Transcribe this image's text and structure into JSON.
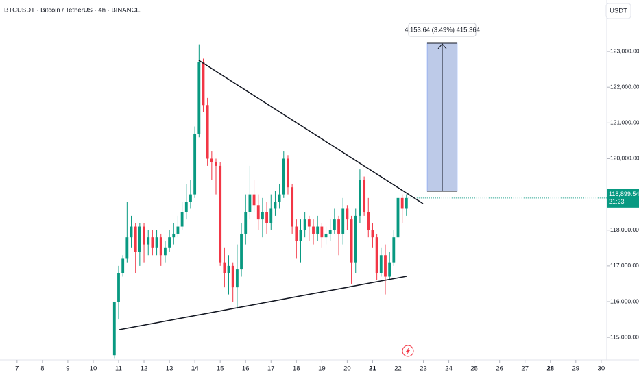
{
  "header": {
    "symbol": "BTCUSDT · Bitcoin / TetherUS · 4h · BINANCE",
    "currency_button": "USDT"
  },
  "chart_data": {
    "type": "candlestick",
    "up_color": "#089981",
    "down_color": "#f23645",
    "xlim": [
      6.33,
      30.22
    ],
    "ylim": [
      114370,
      124440
    ],
    "xticks": [
      7,
      8,
      9,
      10,
      11,
      12,
      13,
      14,
      15,
      16,
      17,
      18,
      19,
      20,
      21,
      22,
      23,
      24,
      25,
      26,
      27,
      28,
      29,
      30
    ],
    "bold_xticks": [
      14,
      21,
      28
    ],
    "yticks": [
      {
        "value": 115000,
        "label": "115,000.00"
      },
      {
        "value": 116000,
        "label": "116,000.00"
      },
      {
        "value": 117000,
        "label": "117,000.00"
      },
      {
        "value": 118000,
        "label": "118,000.00"
      },
      {
        "value": 119000,
        "label": "119,000.00"
      },
      {
        "value": 120000,
        "label": "120,000.00"
      },
      {
        "value": 121000,
        "label": "121,000.00"
      },
      {
        "value": 122000,
        "label": "122,000.00"
      },
      {
        "value": 123000,
        "label": "123,000.00"
      }
    ],
    "last_price": {
      "value": 118899.54,
      "label": "118,899.54"
    },
    "countdown": "21:23",
    "measure_label": "4,153.64 (3.49%) 415,364",
    "x": [
      10.833,
      11.0,
      11.167,
      11.333,
      11.5,
      11.667,
      11.833,
      12.0,
      12.167,
      12.333,
      12.5,
      12.667,
      12.833,
      13.0,
      13.167,
      13.333,
      13.5,
      13.667,
      13.833,
      14.0,
      14.167,
      14.333,
      14.5,
      14.667,
      14.833,
      15.0,
      15.167,
      15.333,
      15.5,
      15.667,
      15.833,
      16.0,
      16.167,
      16.333,
      16.5,
      16.667,
      16.833,
      17.0,
      17.167,
      17.333,
      17.5,
      17.667,
      17.833,
      18.0,
      18.167,
      18.333,
      18.5,
      18.667,
      18.833,
      19.0,
      19.167,
      19.333,
      19.5,
      19.667,
      19.833,
      20.0,
      20.167,
      20.333,
      20.5,
      20.667,
      20.833,
      21.0,
      21.167,
      21.333,
      21.5,
      21.667,
      21.833,
      22.0,
      22.167,
      22.333
    ],
    "open": [
      114500,
      116000,
      116800,
      117200,
      117800,
      118100,
      117400,
      118100,
      117600,
      117800,
      117500,
      117800,
      117300,
      117500,
      117800,
      117900,
      118100,
      118500,
      118800,
      119000,
      120700,
      122700,
      121500,
      120000,
      119900,
      119800,
      117100,
      116800,
      117000,
      116400,
      116900,
      117900,
      118500,
      119000,
      118700,
      118300,
      118500,
      118200,
      118600,
      118800,
      119000,
      120000,
      119200,
      118100,
      117700,
      118000,
      118300,
      118100,
      117900,
      118100,
      117800,
      117900,
      118000,
      118300,
      117900,
      118600,
      118300,
      117100,
      118400,
      119400,
      118500,
      118000,
      117800,
      116800,
      117300,
      116700,
      117100,
      117800,
      118900,
      118600
    ],
    "high": [
      116000,
      117000,
      117300,
      118800,
      118400,
      118200,
      118200,
      118200,
      118000,
      118000,
      118000,
      117900,
      117700,
      118000,
      118200,
      118400,
      118800,
      119300,
      119400,
      120900,
      123200,
      122800,
      121700,
      120200,
      120000,
      119900,
      117500,
      117300,
      117100,
      117600,
      118200,
      119000,
      119800,
      119400,
      119000,
      118900,
      118800,
      119000,
      119100,
      119300,
      120200,
      120100,
      119300,
      118300,
      118300,
      118500,
      118400,
      118300,
      118400,
      118200,
      118100,
      118300,
      118600,
      118400,
      118900,
      118700,
      118400,
      118600,
      119700,
      119500,
      118900,
      118200,
      117900,
      117500,
      117600,
      117400,
      118000,
      119100,
      119000,
      119000
    ],
    "low": [
      114400,
      115500,
      116700,
      117100,
      117500,
      116800,
      117000,
      117100,
      117300,
      117300,
      117300,
      117000,
      117100,
      117400,
      117600,
      117800,
      118000,
      118300,
      118600,
      118900,
      120600,
      121300,
      119800,
      119400,
      119000,
      117000,
      116400,
      116200,
      116000,
      115800,
      116700,
      117600,
      118300,
      118500,
      118000,
      117800,
      117900,
      118000,
      118400,
      118600,
      118900,
      119000,
      117900,
      117200,
      117100,
      117800,
      117700,
      117600,
      117700,
      117500,
      117600,
      117700,
      117900,
      117300,
      117600,
      118000,
      116500,
      116800,
      118200,
      118400,
      117800,
      117500,
      116600,
      116700,
      116200,
      116600,
      117000,
      117200,
      118200,
      118400
    ],
    "close": [
      116000,
      116800,
      117200,
      117800,
      118100,
      117400,
      118100,
      117600,
      117800,
      117500,
      117800,
      117300,
      117500,
      117800,
      117900,
      118100,
      118500,
      118800,
      119000,
      120700,
      122700,
      121500,
      120000,
      119900,
      119800,
      117100,
      116800,
      117000,
      116400,
      116900,
      117900,
      118500,
      119000,
      118700,
      118300,
      118500,
      118200,
      118600,
      118800,
      119000,
      120000,
      119200,
      118100,
      117700,
      118000,
      118300,
      118100,
      117900,
      118100,
      117800,
      117900,
      118000,
      118300,
      117900,
      118600,
      118300,
      117100,
      118400,
      119400,
      118500,
      118000,
      117800,
      116800,
      117300,
      116700,
      117100,
      117800,
      118900,
      118600,
      118899.54
    ]
  }
}
